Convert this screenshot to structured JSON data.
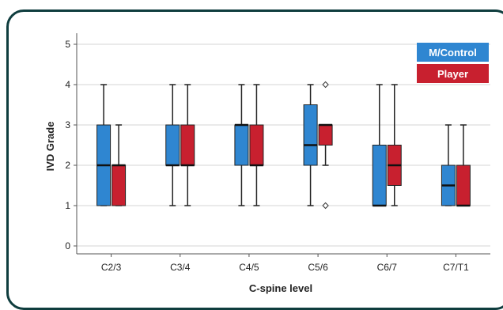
{
  "chart_data": {
    "type": "boxplot",
    "title": "",
    "xlabel": "C-spine level",
    "ylabel": "IVD Grade",
    "ylim": [
      0,
      5
    ],
    "yticks": [
      0,
      1,
      2,
      3,
      4,
      5
    ],
    "grid": true,
    "legend_position": "top-right",
    "categories": [
      "C2/3",
      "C3/4",
      "C4/5",
      "C5/6",
      "C6/7",
      "C7/T1"
    ],
    "series": [
      {
        "name": "M/Control",
        "color": "#2f86d1",
        "boxes": [
          {
            "whisker_low": 1,
            "q1": 1,
            "median": 2,
            "q3": 3,
            "whisker_high": 4,
            "outliers": []
          },
          {
            "whisker_low": 1,
            "q1": 2,
            "median": 2,
            "q3": 3,
            "whisker_high": 4,
            "outliers": []
          },
          {
            "whisker_low": 1,
            "q1": 2,
            "median": 3,
            "q3": 3,
            "whisker_high": 4,
            "outliers": []
          },
          {
            "whisker_low": 1,
            "q1": 2,
            "median": 2.5,
            "q3": 3.5,
            "whisker_high": 4,
            "outliers": []
          },
          {
            "whisker_low": 1,
            "q1": 1,
            "median": 1,
            "q3": 2.5,
            "whisker_high": 4,
            "outliers": []
          },
          {
            "whisker_low": 1,
            "q1": 1,
            "median": 1.5,
            "q3": 2,
            "whisker_high": 3,
            "outliers": []
          }
        ]
      },
      {
        "name": "Player",
        "color": "#c8202f",
        "boxes": [
          {
            "whisker_low": 1,
            "q1": 1,
            "median": 2,
            "q3": 2,
            "whisker_high": 3,
            "outliers": []
          },
          {
            "whisker_low": 1,
            "q1": 2,
            "median": 2,
            "q3": 3,
            "whisker_high": 4,
            "outliers": []
          },
          {
            "whisker_low": 1,
            "q1": 2,
            "median": 2,
            "q3": 3,
            "whisker_high": 4,
            "outliers": []
          },
          {
            "whisker_low": 2,
            "q1": 2.5,
            "median": 3,
            "q3": 3,
            "whisker_high": 3,
            "outliers": [
              1,
              4
            ]
          },
          {
            "whisker_low": 1,
            "q1": 1.5,
            "median": 2,
            "q3": 2.5,
            "whisker_high": 4,
            "outliers": []
          },
          {
            "whisker_low": 1,
            "q1": 1,
            "median": 1,
            "q3": 2,
            "whisker_high": 3,
            "outliers": []
          }
        ]
      }
    ]
  }
}
